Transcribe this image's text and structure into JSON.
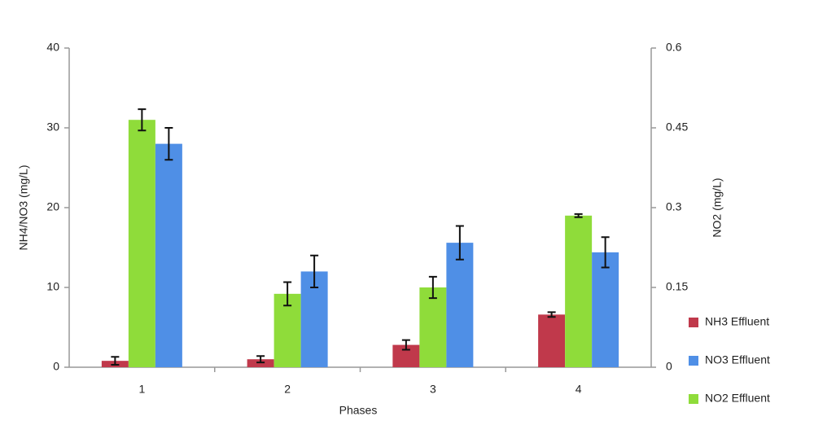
{
  "chart_data": {
    "type": "bar",
    "x_label": "Phases",
    "y_label": "NH4/NO3 (mg/L)",
    "y2_label": "NO2 (mg/L)",
    "categories": [
      "1",
      "2",
      "3",
      "4"
    ],
    "series": [
      {
        "name": "NH3 Effluent",
        "color": "#c0394b",
        "values": [
          0.8,
          1.0,
          2.8,
          6.6
        ],
        "errors": [
          0.5,
          0.4,
          0.6,
          0.3
        ]
      },
      {
        "name": "NO2 Effluent",
        "color": "#8fdc3a",
        "axis": "y2",
        "values": [
          0.465,
          0.138,
          0.15,
          0.285
        ],
        "errors": [
          0.02,
          0.022,
          0.02,
          0.003
        ]
      },
      {
        "name": "NO3 Effluent",
        "color": "#4f8fe6",
        "values": [
          28,
          12,
          15.6,
          14.4
        ],
        "errors": [
          2,
          2,
          2.1,
          1.9
        ]
      }
    ],
    "ylim": [
      0,
      40
    ],
    "yticks": [
      0,
      10,
      20,
      30,
      40
    ],
    "y2lim": [
      0,
      0.6
    ],
    "y2ticks": [
      0,
      0.15,
      0.3,
      0.45,
      0.6
    ],
    "legend": "right"
  }
}
